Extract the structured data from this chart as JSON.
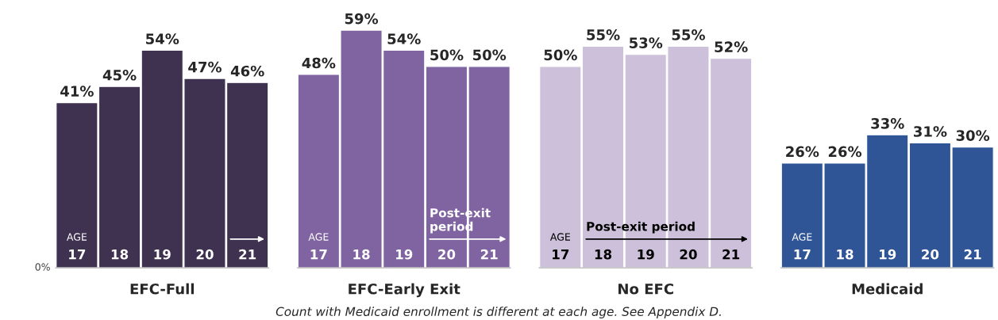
{
  "chart_data": [
    {
      "type": "bar",
      "xlabel": "EFC-Full",
      "categories": [
        "17",
        "18",
        "19",
        "20",
        "21"
      ],
      "values": [
        41,
        45,
        54,
        47,
        46
      ],
      "value_labels": [
        "41%",
        "45%",
        "54%",
        "47%",
        "46%"
      ],
      "color": "#3f3150",
      "annotations": [
        "0%",
        "AGE",
        "Count with Medicaid enrollment is different at each age. See Appendix D."
      ]
    },
    {
      "type": "bar",
      "xlabel": "EFC-Early Exit",
      "categories": [
        "17",
        "18",
        "19",
        "20",
        "21"
      ],
      "values": [
        48,
        59,
        54,
        50,
        50
      ],
      "value_labels": [
        "48%",
        "59%",
        "54%",
        "50%",
        "50%"
      ],
      "color": "#8064a2",
      "annotations": [
        "AGE",
        "Post-exit\nperiod"
      ]
    },
    {
      "type": "bar",
      "xlabel": "No EFC",
      "categories": [
        "17",
        "18",
        "19",
        "20",
        "21"
      ],
      "values": [
        50,
        55,
        53,
        55,
        52
      ],
      "value_labels": [
        "50%",
        "55%",
        "53%",
        "55%",
        "52%"
      ],
      "color": "#ccc0da",
      "annotations": [
        "AGE",
        "Post-exit period"
      ]
    },
    {
      "type": "bar",
      "xlabel": "Medicaid",
      "categories": [
        "17",
        "18",
        "19",
        "20",
        "21"
      ],
      "values": [
        26,
        26,
        33,
        31,
        30
      ],
      "value_labels": [
        "26%",
        "26%",
        "33%",
        "31%",
        "30%"
      ],
      "color": "#2f5597",
      "annotations": [
        "AGE"
      ]
    }
  ]
}
